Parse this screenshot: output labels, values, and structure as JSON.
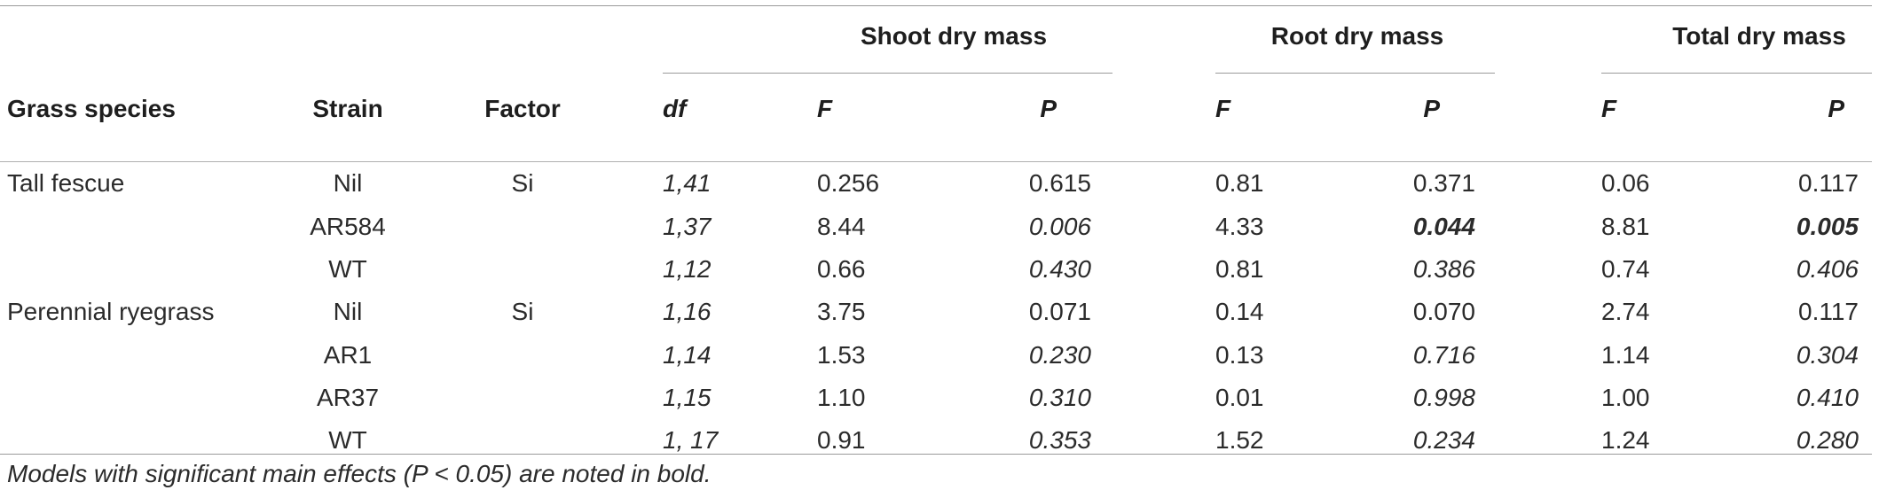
{
  "table": {
    "groups": [
      "Shoot dry mass",
      "Root dry mass",
      "Total dry mass"
    ],
    "columns": {
      "species": "Grass species",
      "strain": "Strain",
      "factor": "Factor",
      "df": "df",
      "shoot_f": "F",
      "shoot_p": "P",
      "root_f": "F",
      "root_p": "P",
      "total_f": "F",
      "total_p": "P"
    },
    "rows": [
      {
        "species": "Tall fescue",
        "strain": "Nil",
        "factor": "Si",
        "df": "1,41",
        "shoot_f": "0.256",
        "shoot_p": "0.615",
        "root_f": "0.81",
        "root_p": "0.371",
        "total_f": "0.06",
        "total_p": "0.117"
      },
      {
        "species": "",
        "strain": "AR584",
        "factor": "",
        "df": "1,37",
        "shoot_f": "8.44",
        "shoot_p": "0.006",
        "root_f": "4.33",
        "root_p": "0.044",
        "total_f": "8.81",
        "total_p": "0.005"
      },
      {
        "species": "",
        "strain": "WT",
        "factor": "",
        "df": "1,12",
        "shoot_f": "0.66",
        "shoot_p": "0.430",
        "root_f": "0.81",
        "root_p": "0.386",
        "total_f": "0.74",
        "total_p": "0.406"
      },
      {
        "species": "Perennial ryegrass",
        "strain": "Nil",
        "factor": "Si",
        "df": "1,16",
        "shoot_f": "3.75",
        "shoot_p": "0.071",
        "root_f": "0.14",
        "root_p": "0.070",
        "total_f": "2.74",
        "total_p": "0.117"
      },
      {
        "species": "",
        "strain": "AR1",
        "factor": "",
        "df": "1,14",
        "shoot_f": "1.53",
        "shoot_p": "0.230",
        "root_f": "0.13",
        "root_p": "0.716",
        "total_f": "1.14",
        "total_p": "0.304"
      },
      {
        "species": "",
        "strain": "AR37",
        "factor": "",
        "df": "1,15",
        "shoot_f": "1.10",
        "shoot_p": "0.310",
        "root_f": "0.01",
        "root_p": "0.998",
        "total_f": "1.00",
        "total_p": "0.410"
      },
      {
        "species": "",
        "strain": "WT",
        "factor": "",
        "df": "1, 17",
        "shoot_f": "0.91",
        "shoot_p": "0.353",
        "root_f": "1.52",
        "root_p": "0.234",
        "total_f": "1.24",
        "total_p": "0.280"
      }
    ],
    "note": "Models with significant main effects (P < 0.05) are noted in bold."
  }
}
